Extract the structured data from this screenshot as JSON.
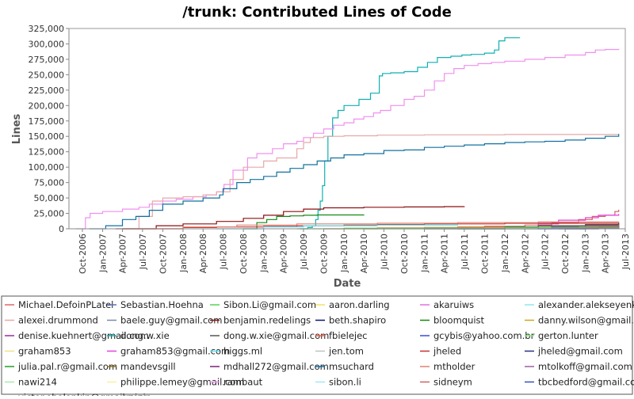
{
  "chart_data": {
    "type": "line",
    "title": "/trunk: Contributed Lines of Code",
    "xlabel": "Date",
    "ylabel": "Lines",
    "xlim": [
      "2006-08-01",
      "2013-07-01"
    ],
    "ylim": [
      0,
      325000
    ],
    "grid": false,
    "legend_position": "bottom",
    "y_ticks": [
      0,
      25000,
      50000,
      75000,
      100000,
      125000,
      150000,
      175000,
      200000,
      225000,
      250000,
      275000,
      300000,
      325000
    ],
    "y_tick_labels": [
      "0",
      "25,000",
      "50,000",
      "75,000",
      "100,000",
      "125,000",
      "150,000",
      "175,000",
      "200,000",
      "225,000",
      "250,000",
      "275,000",
      "300,000",
      "325,000"
    ],
    "x_ticks": [
      "2006-10-01",
      "2007-01-01",
      "2007-04-01",
      "2007-07-01",
      "2007-10-01",
      "2008-01-01",
      "2008-04-01",
      "2008-07-01",
      "2008-10-01",
      "2009-01-01",
      "2009-04-01",
      "2009-07-01",
      "2009-10-01",
      "2010-01-01",
      "2010-04-01",
      "2010-07-01",
      "2010-10-01",
      "2011-01-01",
      "2011-04-01",
      "2011-07-01",
      "2011-10-01",
      "2012-01-01",
      "2012-04-01",
      "2012-07-01",
      "2012-10-01",
      "2013-01-01",
      "2013-04-01",
      "2013-07-01"
    ],
    "x_tick_labels": [
      "Oct-2006",
      "Jan-2007",
      "Apr-2007",
      "Jul-2007",
      "Oct-2007",
      "Jan-2008",
      "Apr-2008",
      "Jul-2008",
      "Oct-2008",
      "Jan-2009",
      "Apr-2009",
      "Jul-2009",
      "Oct-2009",
      "Jan-2010",
      "Apr-2010",
      "Jul-2010",
      "Oct-2010",
      "Jan-2011",
      "Apr-2011",
      "Jul-2011",
      "Oct-2011",
      "Jan-2012",
      "Apr-2012",
      "Jul-2012",
      "Oct-2012",
      "Jan-2013",
      "Apr-2013",
      "Jul-2013"
    ],
    "legend": [
      {
        "name": "Michael.DefoinPLatel",
        "color": "#e06666"
      },
      {
        "name": "Sebastian.Hoehna",
        "color": "#5b6fb5"
      },
      {
        "name": "Sibon.Li@gmail.com",
        "color": "#55d455"
      },
      {
        "name": "aaron.darling",
        "color": "#f2e060"
      },
      {
        "name": "akaruiws",
        "color": "#e070e0"
      },
      {
        "name": "alexander.alekseyenko",
        "color": "#8fe8e8"
      },
      {
        "name": "alexei.drummond",
        "color": "#e6a8a8"
      },
      {
        "name": "baele.guy@gmail.com",
        "color": "#7a8aa8"
      },
      {
        "name": "benjamin.redelings",
        "color": "#8b1010"
      },
      {
        "name": "beth.shapiro",
        "color": "#10106b"
      },
      {
        "name": "bloomquist",
        "color": "#108810"
      },
      {
        "name": "danny.wilson@gmail.com",
        "color": "#c8a818"
      },
      {
        "name": "denise.kuehnert@gmail.com",
        "color": "#9a2a9a"
      },
      {
        "name": "dong.w.xie",
        "color": "#10b0b0"
      },
      {
        "name": "dong.w.xie@gmail.com",
        "color": "#555555"
      },
      {
        "name": "fbielejec",
        "color": "#ff5a3a"
      },
      {
        "name": "gcybis@yahoo.com.br",
        "color": "#3a4ad8"
      },
      {
        "name": "gerton.lunter",
        "color": "#88e888"
      },
      {
        "name": "graham853",
        "color": "#f0e080"
      },
      {
        "name": "graham853@gmail.com",
        "color": "#e040e0"
      },
      {
        "name": "higgs.ml",
        "color": "#60e0f0"
      },
      {
        "name": "jen.tom",
        "color": "#c0c0c0"
      },
      {
        "name": "jheled",
        "color": "#c03030"
      },
      {
        "name": "jheled@gmail.com",
        "color": "#203080"
      },
      {
        "name": "julia.pal.r@gmail.com",
        "color": "#20a020"
      },
      {
        "name": "mandevsgill",
        "color": "#887020"
      },
      {
        "name": "mdhall272@gmail.com",
        "color": "#7a207a"
      },
      {
        "name": "msuchard",
        "color": "#1070a0"
      },
      {
        "name": "mtholder",
        "color": "#e08070"
      },
      {
        "name": "mtolkoff@gmail.com",
        "color": "#9a60a0"
      },
      {
        "name": "nawi214",
        "color": "#a8e8a8"
      },
      {
        "name": "philippe.lemey@gmail.com",
        "color": "#f8f0a0"
      },
      {
        "name": "rambaut",
        "color": "#f090f0"
      },
      {
        "name": "sibon.li",
        "color": "#a0e8f0"
      },
      {
        "name": "sidneym",
        "color": "#d06060"
      },
      {
        "name": "tbcbedford@gmail.com",
        "color": "#3050c0"
      },
      {
        "name": "victor.obolonkin@gmail.com",
        "color": "#60d060"
      },
      {
        "name": "vminin",
        "color": "#f0e060"
      }
    ],
    "series": [
      {
        "name": "dong.w.xie",
        "color": "#10b0b0",
        "step": true,
        "x": [
          "2009-06-15",
          "2009-07-20",
          "2009-08-10",
          "2009-08-25",
          "2009-09-05",
          "2009-09-15",
          "2009-09-25",
          "2009-10-05",
          "2009-10-20",
          "2009-11-10",
          "2009-12-05",
          "2010-01-01",
          "2010-02-01",
          "2010-03-10",
          "2010-05-01",
          "2010-06-10",
          "2010-06-25",
          "2010-08-01",
          "2010-10-01",
          "2010-12-01",
          "2011-01-15",
          "2011-03-01",
          "2011-05-01",
          "2011-06-20",
          "2011-08-01",
          "2011-10-01",
          "2011-11-15",
          "2011-12-05",
          "2012-01-01",
          "2012-02-10",
          "2012-03-10"
        ],
        "y": [
          0,
          2000,
          5000,
          15000,
          30000,
          45000,
          70000,
          110000,
          150000,
          180000,
          192000,
          200000,
          200000,
          210000,
          220000,
          248000,
          252000,
          253000,
          255000,
          262000,
          270000,
          278000,
          280000,
          282000,
          283000,
          285000,
          290000,
          305000,
          310000,
          310000,
          310000
        ]
      },
      {
        "name": "rambaut",
        "color": "#f090f0",
        "step": true,
        "x": [
          "2006-09-01",
          "2006-10-15",
          "2006-11-05",
          "2007-01-01",
          "2007-04-01",
          "2007-06-15",
          "2007-08-01",
          "2007-10-01",
          "2007-12-01",
          "2008-02-15",
          "2008-04-15",
          "2008-06-01",
          "2008-07-05",
          "2008-08-15",
          "2008-10-20",
          "2008-12-01",
          "2009-02-10",
          "2009-04-01",
          "2009-06-01",
          "2009-07-01",
          "2009-08-15",
          "2009-10-01",
          "2009-11-15",
          "2010-01-01",
          "2010-02-15",
          "2010-04-01",
          "2010-05-15",
          "2010-06-15",
          "2010-08-01",
          "2010-10-01",
          "2010-11-15",
          "2011-01-01",
          "2011-02-15",
          "2011-04-01",
          "2011-05-15",
          "2011-07-01",
          "2011-09-01",
          "2011-11-01",
          "2012-01-01",
          "2012-04-01",
          "2012-07-01",
          "2012-10-01",
          "2013-01-01",
          "2013-02-15",
          "2013-04-01",
          "2013-06-01"
        ],
        "y": [
          0,
          18000,
          25000,
          28000,
          32000,
          35000,
          40000,
          45000,
          48000,
          52000,
          55000,
          60000,
          72000,
          95000,
          115000,
          122000,
          130000,
          138000,
          142000,
          148000,
          155000,
          162000,
          168000,
          172000,
          178000,
          182000,
          188000,
          192000,
          200000,
          210000,
          215000,
          225000,
          240000,
          252000,
          260000,
          265000,
          268000,
          270000,
          272000,
          275000,
          278000,
          282000,
          286000,
          290000,
          291000,
          292000
        ]
      },
      {
        "name": "alexei.drummond",
        "color": "#e6a8a8",
        "step": true,
        "x": [
          "2007-04-01",
          "2007-06-15",
          "2007-08-15",
          "2007-10-01",
          "2008-01-01",
          "2008-04-01",
          "2008-06-01",
          "2008-08-01",
          "2008-10-01",
          "2009-01-01",
          "2009-03-01",
          "2009-06-01",
          "2009-07-01",
          "2009-08-01",
          "2009-10-01",
          "2010-01-01",
          "2010-06-01",
          "2011-01-01",
          "2012-01-01",
          "2013-06-01"
        ],
        "y": [
          0,
          20000,
          45000,
          50000,
          52000,
          55000,
          60000,
          80000,
          100000,
          110000,
          115000,
          130000,
          140000,
          148000,
          150000,
          151000,
          152000,
          152500,
          153000,
          153000
        ]
      },
      {
        "name": "msuchard",
        "color": "#1070a0",
        "step": true,
        "x": [
          "2006-11-01",
          "2007-01-15",
          "2007-04-01",
          "2007-06-01",
          "2007-08-01",
          "2007-10-01",
          "2008-01-01",
          "2008-04-01",
          "2008-06-15",
          "2008-07-01",
          "2008-09-01",
          "2008-11-01",
          "2009-01-01",
          "2009-03-01",
          "2009-05-01",
          "2009-07-01",
          "2009-09-01",
          "2009-11-01",
          "2010-01-01",
          "2010-04-01",
          "2010-07-01",
          "2010-10-01",
          "2011-01-01",
          "2011-04-01",
          "2011-07-01",
          "2011-10-01",
          "2012-01-01",
          "2012-04-01",
          "2012-07-01",
          "2012-10-01",
          "2013-01-01",
          "2013-04-01",
          "2013-06-01"
        ],
        "y": [
          0,
          5000,
          15000,
          20000,
          30000,
          40000,
          45000,
          50000,
          55000,
          65000,
          75000,
          80000,
          85000,
          92000,
          98000,
          104000,
          110000,
          115000,
          120000,
          122000,
          127000,
          128000,
          132000,
          134000,
          136000,
          138000,
          140000,
          141000,
          142000,
          144000,
          147000,
          150000,
          154000
        ]
      },
      {
        "name": "benjamin.redelings",
        "color": "#8b1010",
        "step": true,
        "x": [
          "2007-03-01",
          "2007-09-01",
          "2008-01-01",
          "2008-06-01",
          "2008-10-01",
          "2009-01-01",
          "2009-04-01",
          "2009-07-01",
          "2009-10-01",
          "2010-04-01",
          "2010-10-01",
          "2011-04-01",
          "2011-07-01"
        ],
        "y": [
          0,
          5000,
          8000,
          12000,
          17000,
          22000,
          28000,
          32000,
          34000,
          35000,
          35500,
          36000,
          36500
        ]
      },
      {
        "name": "bloomquist",
        "color": "#108810",
        "step": true,
        "x": [
          "2008-10-01",
          "2008-12-01",
          "2009-01-15",
          "2009-03-01",
          "2009-05-01",
          "2009-07-01",
          "2009-09-01",
          "2010-04-01"
        ],
        "y": [
          0,
          10000,
          15000,
          20000,
          21000,
          22000,
          22500,
          23000
        ]
      },
      {
        "name": "sidneym",
        "color": "#d06060",
        "step": true,
        "x": [
          "2010-04-01",
          "2011-01-01",
          "2011-10-01",
          "2012-04-01",
          "2012-08-01",
          "2012-12-01",
          "2013-02-01",
          "2013-04-01",
          "2013-05-15",
          "2013-06-01"
        ],
        "y": [
          0,
          2000,
          4000,
          6000,
          10000,
          15000,
          20000,
          22000,
          28000,
          31000
        ]
      },
      {
        "name": "graham853@gmail.com",
        "color": "#e040e0",
        "step": true,
        "x": [
          "2011-01-01",
          "2012-01-01",
          "2012-06-01",
          "2012-09-01",
          "2013-01-01",
          "2013-03-01",
          "2013-06-01"
        ],
        "y": [
          0,
          3000,
          8000,
          14000,
          18000,
          22000,
          24000
        ]
      },
      {
        "name": "jheled",
        "color": "#c03030",
        "step": true,
        "x": [
          "2007-04-01",
          "2008-01-01",
          "2008-06-01",
          "2009-01-01",
          "2009-06-01",
          "2010-01-01",
          "2010-06-01",
          "2011-01-01",
          "2012-01-01",
          "2013-06-01"
        ],
        "y": [
          0,
          2000,
          3000,
          4000,
          5000,
          6000,
          7000,
          8000,
          9000,
          10000
        ]
      },
      {
        "name": "mtholder",
        "color": "#e08070",
        "step": true,
        "x": [
          "2007-06-01",
          "2008-01-01",
          "2008-09-01",
          "2009-06-01",
          "2010-06-01",
          "2011-06-01",
          "2012-06-01",
          "2013-06-01"
        ],
        "y": [
          0,
          3000,
          6000,
          8000,
          9000,
          10000,
          11000,
          12000
        ]
      },
      {
        "name": "jheled@gmail.com",
        "color": "#203080",
        "step": true,
        "x": [
          "2011-01-01",
          "2012-01-01",
          "2012-08-01",
          "2013-01-01",
          "2013-06-01"
        ],
        "y": [
          0,
          2000,
          4000,
          6000,
          9000
        ]
      },
      {
        "name": "julia.pal.r@gmail.com",
        "color": "#20a020",
        "step": true,
        "x": [
          "2012-01-01",
          "2012-06-01",
          "2012-12-01",
          "2013-06-01"
        ],
        "y": [
          0,
          2000,
          4000,
          6000
        ]
      },
      {
        "name": "fbielejec",
        "color": "#ff5a3a",
        "step": true,
        "x": [
          "2009-10-01",
          "2010-06-01",
          "2011-06-01",
          "2012-06-01",
          "2013-06-01"
        ],
        "y": [
          0,
          1500,
          3000,
          4500,
          6000
        ]
      },
      {
        "name": "dong.w.xie@gmail.com",
        "color": "#555555",
        "step": true,
        "x": [
          "2011-06-01",
          "2012-01-01",
          "2012-06-01",
          "2013-01-01",
          "2013-06-01"
        ],
        "y": [
          0,
          3000,
          5000,
          7000,
          8000
        ]
      },
      {
        "name": "higgs.ml",
        "color": "#60e0f0",
        "step": true,
        "x": [
          "2008-06-01",
          "2009-01-01",
          "2009-07-01",
          "2010-06-01",
          "2011-06-01"
        ],
        "y": [
          0,
          3000,
          5000,
          6000,
          7000
        ]
      },
      {
        "name": "gcybis@yahoo.com.br",
        "color": "#3a4ad8",
        "step": true,
        "x": [
          "2012-06-01",
          "2013-01-01",
          "2013-06-01"
        ],
        "y": [
          0,
          2000,
          3500
        ]
      },
      {
        "name": "mandevsgill",
        "color": "#887020",
        "step": true,
        "x": [
          "2012-09-01",
          "2013-03-01",
          "2013-06-01"
        ],
        "y": [
          0,
          1500,
          3000
        ]
      },
      {
        "name": "mdhall272@gmail.com",
        "color": "#7a207a",
        "step": true,
        "x": [
          "2012-10-01",
          "2013-03-01",
          "2013-06-01"
        ],
        "y": [
          0,
          2000,
          3500
        ]
      },
      {
        "name": "tbcbedford@gmail.com",
        "color": "#3050c0",
        "step": true,
        "x": [
          "2012-06-01",
          "2013-01-01",
          "2013-06-01"
        ],
        "y": [
          0,
          1500,
          2500
        ]
      },
      {
        "name": "Sibon.Li@gmail.com",
        "color": "#55d455",
        "step": true,
        "x": [
          "2009-06-01",
          "2010-01-01",
          "2011-01-01",
          "2012-01-01",
          "2013-06-01"
        ],
        "y": [
          0,
          1000,
          1500,
          2000,
          2500
        ]
      },
      {
        "name": "baele.guy@gmail.com",
        "color": "#7a8aa8",
        "step": true,
        "x": [
          "2012-01-01",
          "2012-08-01",
          "2013-06-01"
        ],
        "y": [
          0,
          1500,
          3000
        ]
      }
    ]
  }
}
